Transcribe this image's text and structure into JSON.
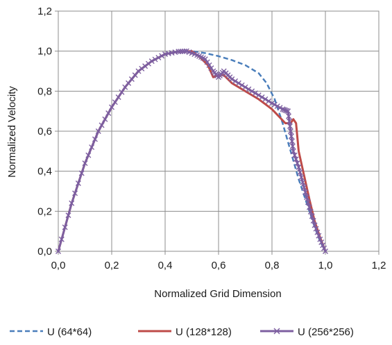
{
  "chart_data": {
    "type": "line",
    "title": "",
    "xlabel": "Normalized Grid Dimension",
    "ylabel": "Normalized Velocity",
    "xlim": [
      0,
      1.2
    ],
    "ylim": [
      0,
      1.2
    ],
    "xticks": [
      "0,0",
      "0,2",
      "0,4",
      "0,6",
      "0,8",
      "1,0",
      "1,2"
    ],
    "yticks": [
      "0,0",
      "0,2",
      "0,4",
      "0,6",
      "0,8",
      "1,0",
      "1,2"
    ],
    "grid": "vertical-and-horizontal",
    "legend_position": "bottom",
    "series": [
      {
        "name": "U (64*64)",
        "color": "#4a7ebb",
        "style": "dashed",
        "marker": "none",
        "x": [
          0.0,
          0.05,
          0.1,
          0.15,
          0.2,
          0.25,
          0.3,
          0.35,
          0.4,
          0.45,
          0.5,
          0.55,
          0.6,
          0.65,
          0.7,
          0.75,
          0.78,
          0.81,
          0.84,
          0.87,
          0.9,
          0.93,
          0.96,
          0.98,
          1.0
        ],
        "y": [
          0.0,
          0.24,
          0.44,
          0.6,
          0.72,
          0.82,
          0.9,
          0.95,
          0.985,
          0.998,
          1.0,
          0.99,
          0.975,
          0.955,
          0.93,
          0.89,
          0.84,
          0.76,
          0.64,
          0.5,
          0.36,
          0.24,
          0.12,
          0.05,
          0.0
        ]
      },
      {
        "name": "U (128*128)",
        "color": "#be4b48",
        "style": "solid",
        "marker": "none",
        "x": [
          0.0,
          0.05,
          0.1,
          0.15,
          0.2,
          0.25,
          0.3,
          0.35,
          0.4,
          0.45,
          0.5,
          0.53,
          0.56,
          0.58,
          0.6,
          0.62,
          0.65,
          0.7,
          0.75,
          0.8,
          0.85,
          0.87,
          0.88,
          0.89,
          0.9,
          0.92,
          0.94,
          0.96,
          0.98,
          1.0
        ],
        "y": [
          0.0,
          0.24,
          0.44,
          0.6,
          0.72,
          0.82,
          0.9,
          0.95,
          0.985,
          0.998,
          1.0,
          0.97,
          0.93,
          0.87,
          0.88,
          0.88,
          0.84,
          0.8,
          0.76,
          0.71,
          0.64,
          0.64,
          0.66,
          0.64,
          0.5,
          0.38,
          0.26,
          0.15,
          0.07,
          0.0
        ]
      },
      {
        "name": "U (256*256)",
        "color": "#7d5fa0",
        "style": "solid",
        "marker": "x",
        "x": [
          0.0,
          0.05,
          0.1,
          0.15,
          0.2,
          0.25,
          0.3,
          0.35,
          0.4,
          0.45,
          0.48,
          0.52,
          0.55,
          0.58,
          0.6,
          0.62,
          0.65,
          0.7,
          0.75,
          0.8,
          0.84,
          0.86,
          0.87,
          0.88,
          0.9,
          0.92,
          0.94,
          0.96,
          0.98,
          1.0
        ],
        "y": [
          0.0,
          0.24,
          0.44,
          0.6,
          0.72,
          0.82,
          0.9,
          0.95,
          0.985,
          0.998,
          1.0,
          0.98,
          0.96,
          0.9,
          0.87,
          0.9,
          0.86,
          0.82,
          0.78,
          0.74,
          0.71,
          0.7,
          0.6,
          0.5,
          0.42,
          0.32,
          0.22,
          0.13,
          0.06,
          0.0
        ]
      }
    ]
  }
}
